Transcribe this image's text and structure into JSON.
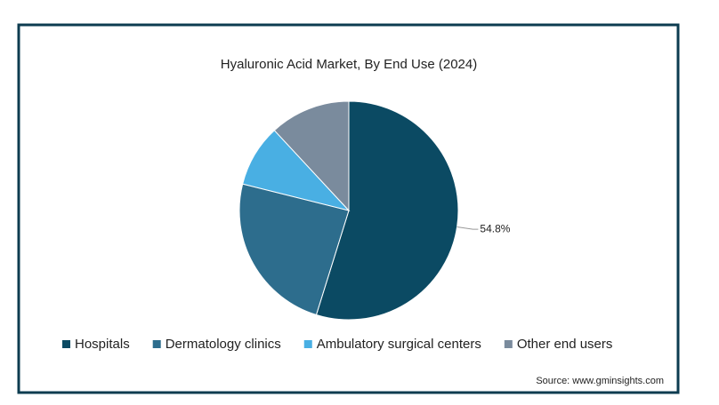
{
  "chart_data": {
    "type": "pie",
    "title": "Hyaluronic Acid Market, By End Use (2024)",
    "categories": [
      "Hospitals",
      "Dermatology clinics",
      "Ambulatory surgical centers",
      "Other end users"
    ],
    "values": [
      54.8,
      24.1,
      9.2,
      11.9
    ],
    "value_labels": [
      "54.8%",
      null,
      null,
      null
    ],
    "colors": [
      "#0b4a63",
      "#2d6d8d",
      "#49afe3",
      "#7a8b9d"
    ],
    "source": "Source: www.gminsights.com"
  }
}
